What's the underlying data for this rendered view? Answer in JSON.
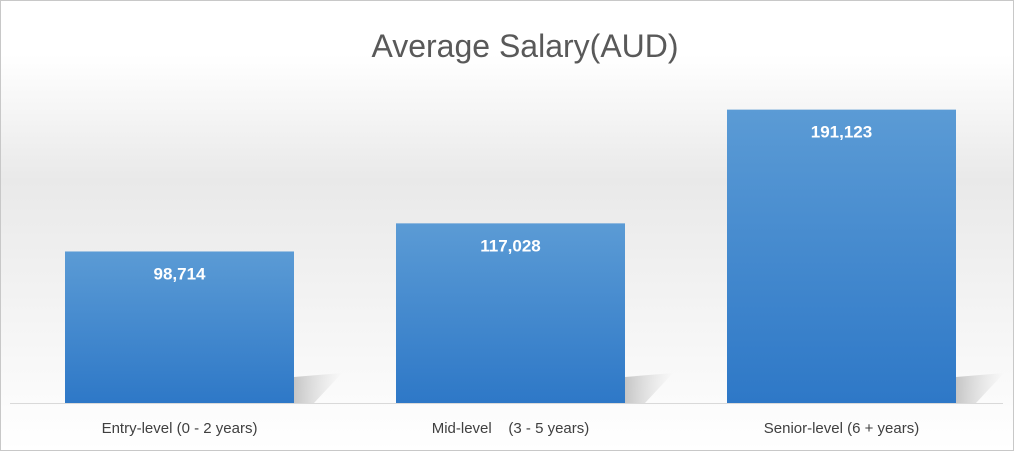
{
  "chart_data": {
    "type": "bar",
    "title": "Average Salary(AUD)",
    "categories": [
      "Entry-level (0 - 2 years)",
      "Mid-level    (3 - 5 years)",
      "Senior-level (6 + years)"
    ],
    "values": [
      98714,
      117028,
      191123
    ],
    "data_labels": [
      "98,714",
      "117,028",
      "191,123"
    ],
    "xlabel": "",
    "ylabel": "",
    "ylim": [
      0,
      200000
    ],
    "grid": false,
    "legend": "none",
    "colors": {
      "bar_top": "#5b9bd5",
      "bar_bottom": "#2e78c7",
      "label": "#ffffff",
      "title": "#595959",
      "axis_text": "#404040",
      "axis_line": "#d9d9d9"
    }
  }
}
